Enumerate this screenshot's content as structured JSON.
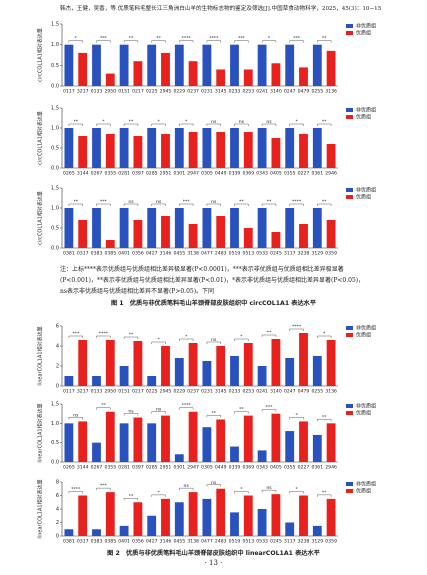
{
  "header": "韩杰，王健，吴香，等.优质笔料毛整长江三角洲白山羊的生物标志物的鉴定及筛选[J].中国草食动物科学，2025，45(3)：10−15",
  "chart_data": [
    {
      "type": "bar",
      "y_label": "circCOL1A1相对表达量",
      "categories": [
        "0117",
        "3217",
        "0133",
        "2950",
        "0151",
        "0217",
        "0225",
        "2945",
        "0229",
        "0237",
        "0231",
        "3145",
        "0233",
        "0253",
        "0241",
        "3140",
        "0247",
        "0479",
        "0255",
        "3136"
      ],
      "series": [
        {
          "name": "非优质组",
          "color": "#2a52be",
          "values": [
            1.0,
            null,
            1.0,
            null,
            1.0,
            null,
            1.0,
            null,
            1.0,
            null,
            1.0,
            null,
            1.0,
            null,
            1.0,
            null,
            1.0,
            null,
            1.0,
            null
          ]
        },
        {
          "name": "优质组",
          "color": "#e8211e",
          "values": [
            null,
            0.8,
            null,
            0.3,
            null,
            0.6,
            null,
            0.8,
            null,
            0.6,
            null,
            0.4,
            null,
            0.4,
            null,
            0.55,
            null,
            0.45,
            null,
            0.85
          ]
        }
      ],
      "annotations": [
        "*",
        "***",
        "**",
        "**",
        "****",
        "****",
        "***",
        "*",
        "***",
        "**"
      ],
      "ylim": [
        0,
        1.5
      ],
      "yticks": [
        {
          "value": 0,
          "label": "0.0"
        },
        {
          "value": 0.5,
          "label": "0.5"
        },
        {
          "value": 1,
          "label": "1.0"
        },
        {
          "value": 1.5,
          "label": "1.5"
        }
      ]
    },
    {
      "type": "bar",
      "y_label": "circCOL1A1相对表达量",
      "categories": [
        "0265",
        "3144",
        "0267",
        "0355",
        "0281",
        "0397",
        "0285",
        "2951",
        "0301",
        "2947",
        "0305",
        "0449",
        "0339",
        "0369",
        "0343",
        "0405",
        "0355",
        "0227",
        "0361",
        "2946"
      ],
      "series": [
        {
          "name": "非优质组",
          "color": "#2a52be",
          "values": [
            1.0,
            null,
            1.0,
            null,
            1.0,
            null,
            1.0,
            null,
            1.0,
            null,
            1.0,
            null,
            1.0,
            null,
            1.0,
            null,
            1.0,
            null,
            1.0,
            null
          ]
        },
        {
          "name": "优质组",
          "color": "#e8211e",
          "values": [
            null,
            0.8,
            null,
            0.85,
            null,
            0.8,
            null,
            0.85,
            null,
            0.9,
            null,
            0.9,
            null,
            0.9,
            null,
            0.75,
            null,
            0.85,
            null,
            0.6
          ]
        }
      ],
      "annotations": [
        "**",
        "*",
        "**",
        "*",
        "*",
        "ns",
        "ns",
        "ns",
        "*",
        "**"
      ],
      "ylim": [
        0,
        1.5
      ],
      "yticks": [
        {
          "value": 0,
          "label": "0.0"
        },
        {
          "value": 0.5,
          "label": "0.5"
        },
        {
          "value": 1,
          "label": "1.0"
        },
        {
          "value": 1.5,
          "label": "1.5"
        }
      ]
    },
    {
      "type": "bar",
      "y_label": "circCOL1A1相对表达量",
      "categories": [
        "0381",
        "0317",
        "0383",
        "0385",
        "0401",
        "0356",
        "0427",
        "3146",
        "0455",
        "3138",
        "0477",
        "2483",
        "0519",
        "0513",
        "0533",
        "0245",
        "3117",
        "3238",
        "3129",
        "0359"
      ],
      "series": [
        {
          "name": "非优质组",
          "color": "#2a52be",
          "values": [
            1.0,
            null,
            1.0,
            null,
            1.0,
            null,
            1.0,
            null,
            1.0,
            null,
            1.0,
            null,
            1.0,
            null,
            1.0,
            null,
            1.0,
            null,
            1.0,
            null
          ]
        },
        {
          "name": "优质组",
          "color": "#e8211e",
          "values": [
            null,
            0.7,
            null,
            0.2,
            null,
            0.7,
            null,
            0.8,
            null,
            0.6,
            null,
            0.8,
            null,
            0.5,
            null,
            0.4,
            null,
            0.6,
            null,
            0.7
          ]
        }
      ],
      "annotations": [
        "**",
        "***",
        "ns",
        "ns",
        "***",
        "ns",
        "**",
        "**",
        "****",
        "**"
      ],
      "ylim": [
        0,
        1.5
      ],
      "yticks": [
        {
          "value": 0,
          "label": "0.0"
        },
        {
          "value": 0.5,
          "label": "0.5"
        },
        {
          "value": 1,
          "label": "1.0"
        },
        {
          "value": 1.5,
          "label": "1.5"
        }
      ]
    },
    {
      "type": "bar",
      "y_label": "linearCOL1A1相对表达量",
      "categories": [
        "0117",
        "3217",
        "0133",
        "2950",
        "0151",
        "0217",
        "0225",
        "2945",
        "0229",
        "0237",
        "0231",
        "3145",
        "0233",
        "0253",
        "0241",
        "3140",
        "0247",
        "0479",
        "0255",
        "3136"
      ],
      "series": [
        {
          "name": "非优质组",
          "color": "#2a52be",
          "values": [
            1.0,
            null,
            1.0,
            null,
            2.0,
            null,
            1.0,
            null,
            2.8,
            null,
            2.5,
            null,
            3.0,
            null,
            2.0,
            null,
            2.8,
            null,
            3.0,
            null
          ]
        },
        {
          "name": "优质组",
          "color": "#e8211e",
          "values": [
            null,
            4.6,
            null,
            4.6,
            null,
            4.5,
            null,
            4.0,
            null,
            4.3,
            null,
            4.0,
            null,
            4.3,
            null,
            4.7,
            null,
            5.3,
            null,
            4.6
          ]
        }
      ],
      "annotations": [
        "***",
        "****",
        "**",
        "*",
        "*",
        "ns",
        "*",
        "**",
        "****",
        "*"
      ],
      "ylim": [
        0,
        6
      ],
      "yticks": [
        0,
        2,
        4,
        6
      ]
    },
    {
      "type": "bar",
      "y_label": "linearCOL1A1相对表达量",
      "categories": [
        "0265",
        "3144",
        "0267",
        "0355",
        "0281",
        "0397",
        "0285",
        "2951",
        "0301",
        "2947",
        "0305",
        "0449",
        "0339",
        "0369",
        "0343",
        "0405",
        "0355",
        "0227",
        "0361",
        "2946"
      ],
      "series": [
        {
          "name": "非优质组",
          "color": "#2a52be",
          "values": [
            1.0,
            null,
            0.5,
            null,
            1.0,
            null,
            1.0,
            null,
            0.2,
            null,
            0.9,
            null,
            0.4,
            null,
            0.3,
            null,
            0.8,
            null,
            0.7,
            null
          ]
        },
        {
          "name": "优质组",
          "color": "#e8211e",
          "values": [
            null,
            1.05,
            null,
            1.3,
            null,
            1.15,
            null,
            1.2,
            null,
            1.3,
            null,
            1.1,
            null,
            1.2,
            null,
            1.25,
            null,
            1.05,
            null,
            1.0
          ]
        }
      ],
      "annotations": [
        "ns",
        "**",
        "ns",
        "ns",
        "****",
        "**",
        "**",
        "***",
        "*",
        "**"
      ],
      "ylim": [
        0,
        1.5
      ],
      "yticks": [
        {
          "value": 0,
          "label": "0.0"
        },
        {
          "value": 0.5,
          "label": "0.5"
        },
        {
          "value": 1,
          "label": "1.0"
        },
        {
          "value": 1.5,
          "label": "1.5"
        }
      ]
    },
    {
      "type": "bar",
      "y_label": "linearCOL1A1相对表达量",
      "categories": [
        "0381",
        "0317",
        "0383",
        "0385",
        "0401",
        "0356",
        "0427",
        "3146",
        "0455",
        "3138",
        "0477",
        "2483",
        "0519",
        "0513",
        "0533",
        "0245",
        "3117",
        "3238",
        "3129",
        "0359"
      ],
      "series": [
        {
          "name": "非优质组",
          "color": "#2a52be",
          "values": [
            1.0,
            null,
            1.0,
            null,
            1.5,
            null,
            3.0,
            null,
            5.0,
            null,
            5.5,
            null,
            3.5,
            null,
            4.0,
            null,
            2.0,
            null,
            1.5,
            null
          ]
        },
        {
          "name": "优质组",
          "color": "#e8211e",
          "values": [
            null,
            6.0,
            null,
            6.5,
            null,
            5.0,
            null,
            5.5,
            null,
            6.5,
            null,
            7.0,
            null,
            6.0,
            null,
            6.2,
            null,
            6.0,
            null,
            5.5
          ]
        }
      ],
      "annotations": [
        "****",
        "***",
        "**",
        "*",
        "ns",
        "ns",
        "*",
        "ns",
        "*",
        "**"
      ],
      "ylim": [
        0,
        8
      ],
      "yticks": [
        0,
        2,
        4,
        6,
        8
      ]
    }
  ],
  "note": "注：上标****表示优质组与优质组相比差异极显著(P<0.0001)，***表示非优质组与优质组相比差异极显著(P<0.001)，**表示非优质组与优质组相比差异显著(P<0.01)，*表示非优质组与优质组相比差异显著(P<0.05)，ns表示非优质组与优质组相比差异不显著(P>0.05)。下同",
  "figure1_caption": "图 1　优质与非优质笔料毛山羊颈脊部皮肤组织中 circCOL1A1 表达水平",
  "figure2_caption": "图 2　优质与非优质笔料毛山羊颈脊部皮肤组织中 linearCOL1A1 表达水平",
  "page_number": "· 13 ·"
}
